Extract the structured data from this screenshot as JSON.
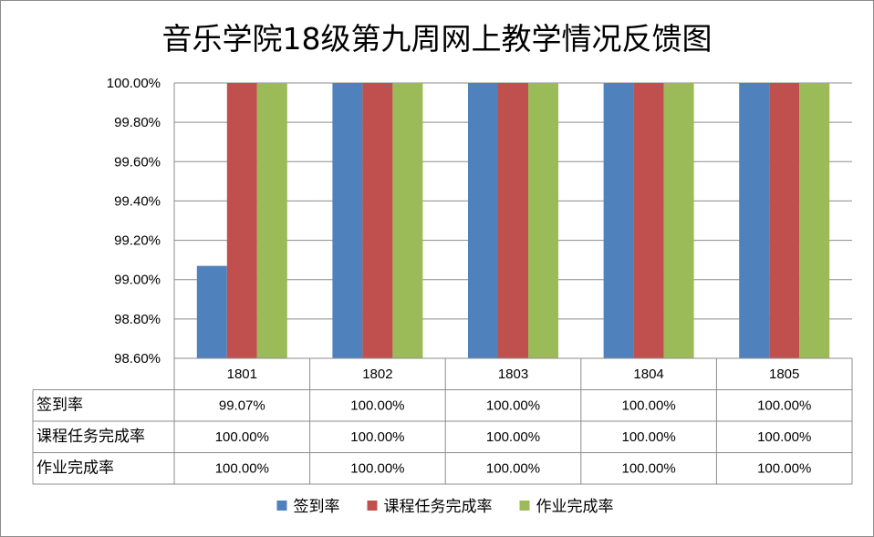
{
  "chart_data": {
    "type": "bar",
    "title": "音乐学院18级第九周网上教学情况反馈图",
    "categories": [
      "1801",
      "1802",
      "1803",
      "1804",
      "1805"
    ],
    "series": [
      {
        "name": "签到率",
        "color": "#4f81bd",
        "values": [
          99.07,
          100,
          100,
          100,
          100
        ],
        "labels": [
          "99.07%",
          "100.00%",
          "100.00%",
          "100.00%",
          "100.00%"
        ]
      },
      {
        "name": "课程任务完成率",
        "color": "#c0504d",
        "values": [
          100,
          100,
          100,
          100,
          100
        ],
        "labels": [
          "100.00%",
          "100.00%",
          "100.00%",
          "100.00%",
          "100.00%"
        ]
      },
      {
        "name": "作业完成率",
        "color": "#9bbb59",
        "values": [
          100,
          100,
          100,
          100,
          100
        ],
        "labels": [
          "100.00%",
          "100.00%",
          "100.00%",
          "100.00%",
          "100.00%"
        ]
      }
    ],
    "ylim": [
      98.6,
      100
    ],
    "yticks": [
      98.6,
      98.8,
      99.0,
      99.2,
      99.4,
      99.6,
      99.8,
      100.0
    ],
    "ytick_labels": [
      "98.60%",
      "98.80%",
      "99.00%",
      "99.20%",
      "99.40%",
      "99.60%",
      "99.80%",
      "100.00%"
    ],
    "grid": true,
    "legend": "bottom",
    "data_table": true
  }
}
